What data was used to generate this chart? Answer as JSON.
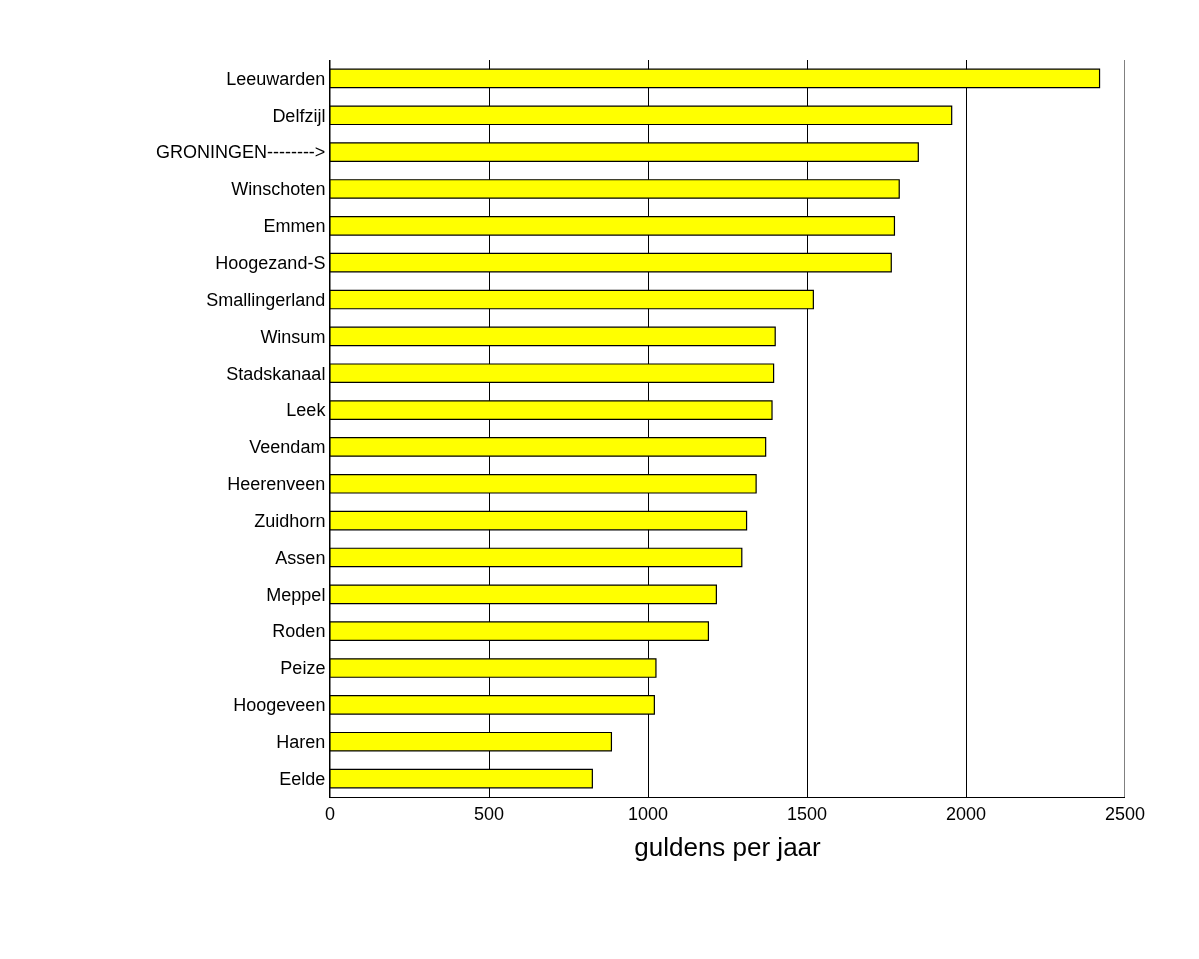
{
  "chart_data": {
    "type": "bar",
    "orientation": "horizontal",
    "xlabel": "guldens per jaar",
    "categories": [
      "Leeuwarden",
      "Delfzijl",
      "GRONINGEN-------->",
      "Winschoten",
      "Emmen",
      "Hoogezand-S",
      "Smallingerland",
      "Winsum",
      "Stadskanaal",
      "Leek",
      "Veendam",
      "Heerenveen",
      "Zuidhorn",
      "Assen",
      "Meppel",
      "Roden",
      "Peize",
      "Hoogeveen",
      "Haren",
      "Eelde"
    ],
    "values": [
      2420,
      1955,
      1850,
      1790,
      1775,
      1765,
      1520,
      1400,
      1395,
      1390,
      1370,
      1340,
      1310,
      1295,
      1215,
      1190,
      1025,
      1020,
      885,
      825
    ],
    "color": "#ffff00",
    "xlim": [
      0,
      2500
    ],
    "xticks": [
      0,
      500,
      1000,
      1500,
      2000,
      2500
    ],
    "grid": "x"
  }
}
